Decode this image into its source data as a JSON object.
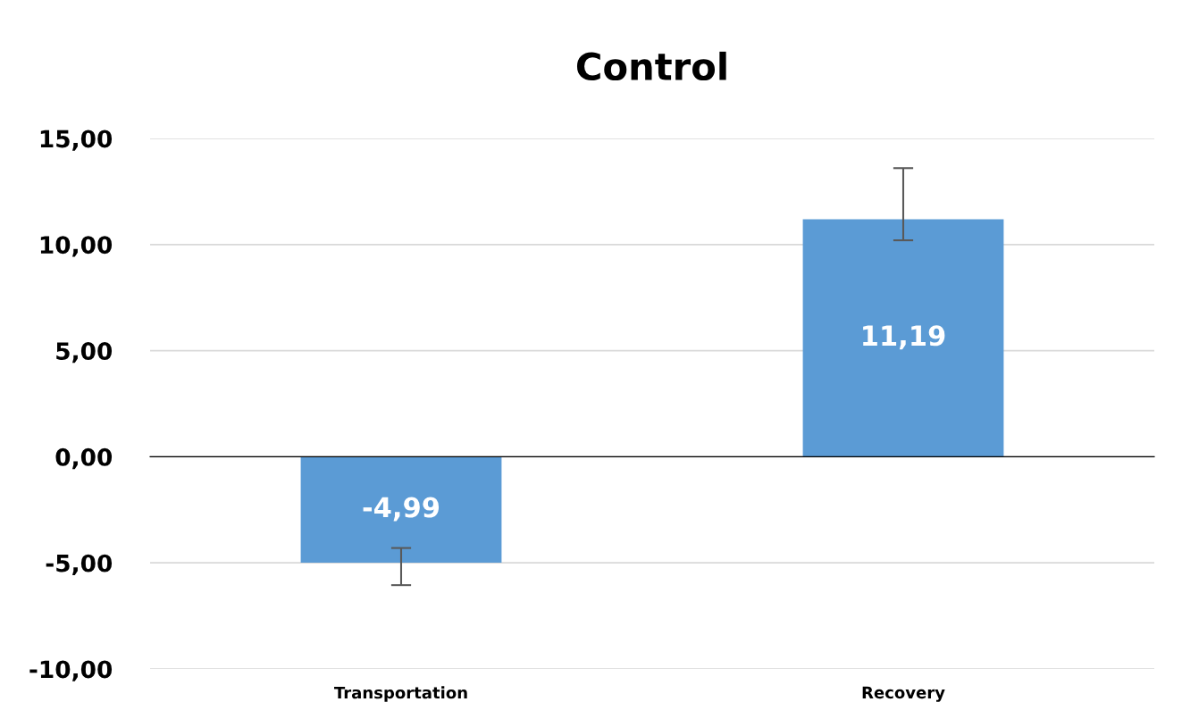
{
  "chart_data": {
    "type": "bar",
    "title": "Control",
    "categories": [
      "Transportation",
      "Recovery"
    ],
    "values": [
      -4.99,
      11.19
    ],
    "errors": [
      [
        -6.05,
        -4.3
      ],
      [
        10.2,
        13.6
      ]
    ],
    "value_labels": [
      "-4,99",
      "11,19"
    ],
    "color": "#5b9bd5",
    "ylim": [
      -10,
      15
    ],
    "yticks": [
      {
        "value": -10,
        "label": "-10,00"
      },
      {
        "value": -5,
        "label": "-5,00"
      },
      {
        "value": 0,
        "label": "0,00"
      },
      {
        "value": 5,
        "label": "5,00"
      },
      {
        "value": 10,
        "label": "10,00"
      },
      {
        "value": 15,
        "label": "15,00"
      }
    ],
    "grid": "y",
    "legend": false
  }
}
